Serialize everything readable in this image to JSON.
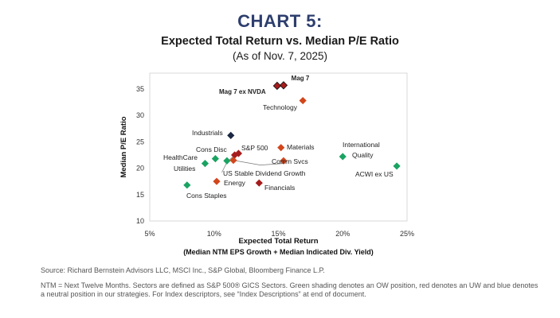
{
  "header": {
    "title": "CHART 5:",
    "subtitle": "Expected Total Return vs. Median P/E Ratio",
    "as_of": "(As of Nov. 7, 2025)"
  },
  "colors": {
    "green": "#1aa362",
    "red": "#d2461c",
    "dark_red": "#a61c1c",
    "navy": "#1c2744"
  },
  "chart_data": {
    "type": "scatter",
    "xlabel": "Expected Total Return",
    "xlabel_line2": "(Median NTM EPS Growth + Median Indicated Div. Yield)",
    "ylabel": "Median P/E Ratio",
    "xlim": [
      5,
      25
    ],
    "ylim": [
      10,
      38
    ],
    "xticks": [
      5,
      10,
      15,
      20,
      25
    ],
    "xtick_labels": [
      "5%",
      "10%",
      "15%",
      "20%",
      "25%"
    ],
    "yticks": [
      10,
      15,
      20,
      25,
      30,
      35
    ],
    "ytick_labels": [
      "10",
      "15",
      "20",
      "25",
      "30",
      "35"
    ],
    "grid": false,
    "points": [
      {
        "label": "Mag 7",
        "x": 15.4,
        "y": 35.7,
        "color": "dark_red",
        "bold": true
      },
      {
        "label": "Mag 7 ex NVDA",
        "x": 14.9,
        "y": 35.6,
        "color": "dark_red",
        "bold": true
      },
      {
        "label": "Technology",
        "x": 16.9,
        "y": 32.8,
        "color": "red"
      },
      {
        "label": "Industrials",
        "x": 11.3,
        "y": 26.2,
        "color": "navy"
      },
      {
        "label": "Cons Disc",
        "x": 11.9,
        "y": 22.8,
        "color": "dark_red"
      },
      {
        "label": "S&P 500",
        "x": 11.6,
        "y": 22.5,
        "color": "dark_red"
      },
      {
        "label": "Materials",
        "x": 15.2,
        "y": 23.9,
        "color": "red"
      },
      {
        "label": "HealthCare",
        "x": 10.1,
        "y": 21.8,
        "color": "green"
      },
      {
        "label": "Utilities",
        "x": 9.3,
        "y": 20.9,
        "color": "green"
      },
      {
        "label": "US Stable Dividend Growth",
        "x": 11.0,
        "y": 21.4,
        "color": "green"
      },
      {
        "label": "Comm Svcs",
        "x": 11.5,
        "y": 21.5,
        "color": "red"
      },
      {
        "label": "Comm Svcs",
        "x": 15.4,
        "y": 21.4,
        "color": "red"
      },
      {
        "label": "Energy",
        "x": 10.2,
        "y": 17.5,
        "color": "red"
      },
      {
        "label": "Financials",
        "x": 13.5,
        "y": 17.2,
        "color": "dark_red"
      },
      {
        "label": "Cons Staples",
        "x": 7.9,
        "y": 16.8,
        "color": "green"
      },
      {
        "label": "International Quality",
        "x": 20.0,
        "y": 22.2,
        "color": "green"
      },
      {
        "label": "ACWI ex US",
        "x": 24.2,
        "y": 20.4,
        "color": "green"
      }
    ],
    "annotations": [
      {
        "text": "Mag 7",
        "bold": true
      },
      {
        "text": "Mag 7 ex NVDA",
        "bold": true
      },
      {
        "text": "Technology"
      },
      {
        "text": "Industrials"
      },
      {
        "text": "Cons Disc"
      },
      {
        "text": "S&P 500"
      },
      {
        "text": "Materials"
      },
      {
        "text": "HealthCare"
      },
      {
        "text": "Utilities"
      },
      {
        "text": "US Stable Dividend Growth"
      },
      {
        "text": "Comm Svcs"
      },
      {
        "text": "Energy"
      },
      {
        "text": "Financials"
      },
      {
        "text": "Cons Staples"
      },
      {
        "text": "International"
      },
      {
        "text": "Quality"
      },
      {
        "text": "ACWI ex US"
      }
    ]
  },
  "footer": {
    "source": "Source: Richard Bernstein Advisors LLC, MSCI Inc., S&P Global, Bloomberg Finance L.P.",
    "note": "NTM = Next Twelve Months. Sectors are defined as S&P 500® GICS Sectors. Green shading denotes an OW position, red denotes an UW and blue denotes a neutral position in our strategies. For Index descriptors, see “Index Descriptions” at end of document."
  }
}
